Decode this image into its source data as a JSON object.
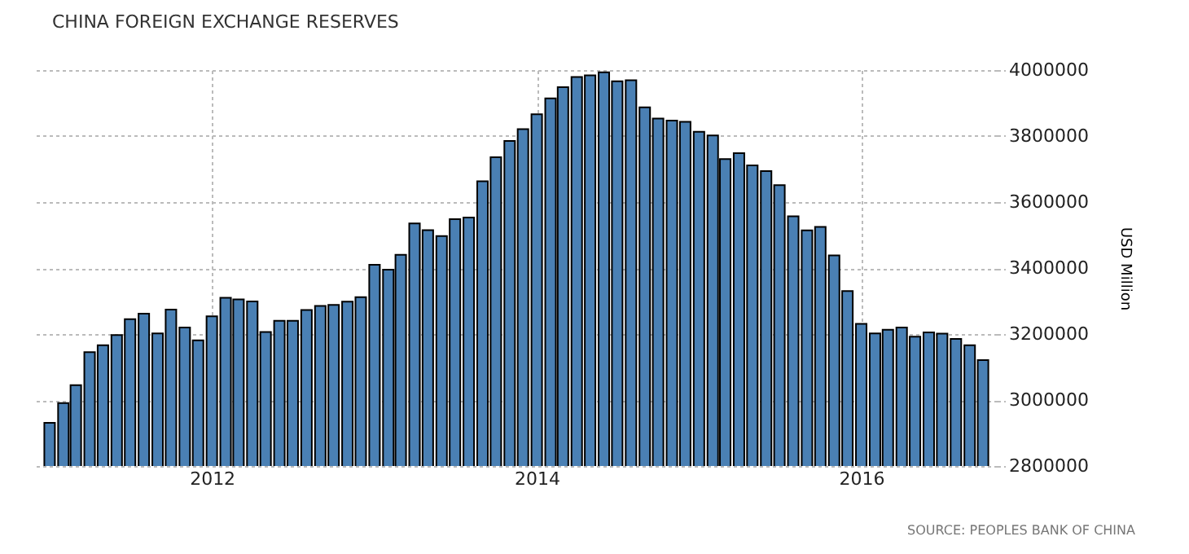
{
  "chart_data": {
    "type": "bar",
    "title": "CHINA FOREIGN EXCHANGE RESERVES",
    "ylabel": "USD Million",
    "x": [
      "2011-01",
      "2011-02",
      "2011-03",
      "2011-04",
      "2011-05",
      "2011-06",
      "2011-07",
      "2011-08",
      "2011-09",
      "2011-10",
      "2011-11",
      "2011-12",
      "2012-01",
      "2012-02",
      "2012-03",
      "2012-04",
      "2012-05",
      "2012-06",
      "2012-07",
      "2012-08",
      "2012-09",
      "2012-10",
      "2012-11",
      "2012-12",
      "2013-01",
      "2013-02",
      "2013-03",
      "2013-04",
      "2013-05",
      "2013-06",
      "2013-07",
      "2013-08",
      "2013-09",
      "2013-10",
      "2013-11",
      "2013-12",
      "2014-01",
      "2014-02",
      "2014-03",
      "2014-04",
      "2014-05",
      "2014-06",
      "2014-07",
      "2014-08",
      "2014-09",
      "2014-10",
      "2014-11",
      "2014-12",
      "2015-01",
      "2015-02",
      "2015-03",
      "2015-04",
      "2015-05",
      "2015-06",
      "2015-07",
      "2015-08",
      "2015-09",
      "2015-10",
      "2015-11",
      "2015-12",
      "2016-01",
      "2016-02",
      "2016-03",
      "2016-04",
      "2016-05",
      "2016-06",
      "2016-07",
      "2016-08",
      "2016-09",
      "2016-10"
    ],
    "values": [
      2931000,
      2991000,
      3045000,
      3145000,
      3166000,
      3197000,
      3245000,
      3262000,
      3202000,
      3274000,
      3220000,
      3181000,
      3254000,
      3310000,
      3305000,
      3299000,
      3206000,
      3240000,
      3240000,
      3273000,
      3285000,
      3288000,
      3298000,
      3312000,
      3410000,
      3395000,
      3440000,
      3535000,
      3515000,
      3497000,
      3548000,
      3553000,
      3663000,
      3736000,
      3785000,
      3821000,
      3866000,
      3914000,
      3948000,
      3979000,
      3984000,
      3993000,
      3966000,
      3969000,
      3887000,
      3853000,
      3847000,
      3843000,
      3813000,
      3802000,
      3730000,
      3748000,
      3711000,
      3694000,
      3651000,
      3557000,
      3514000,
      3525000,
      3438000,
      3330000,
      3231000,
      3202000,
      3213000,
      3220000,
      3192000,
      3205000,
      3201000,
      3185000,
      3166000,
      3121000
    ],
    "color": "#4a80b4",
    "xlim": [
      "2010-12",
      "2016-11"
    ],
    "xticks": [
      {
        "value": "2012-01",
        "label": "2012"
      },
      {
        "value": "2014-01",
        "label": "2014"
      },
      {
        "value": "2016-01",
        "label": "2016"
      }
    ],
    "ylim": [
      2800000,
      4000000
    ],
    "yticks": [
      2800000,
      3000000,
      3200000,
      3400000,
      3600000,
      3800000,
      4000000
    ],
    "grid": true,
    "annotations": [
      "SOURCE: PEOPLES BANK OF CHINA"
    ]
  }
}
